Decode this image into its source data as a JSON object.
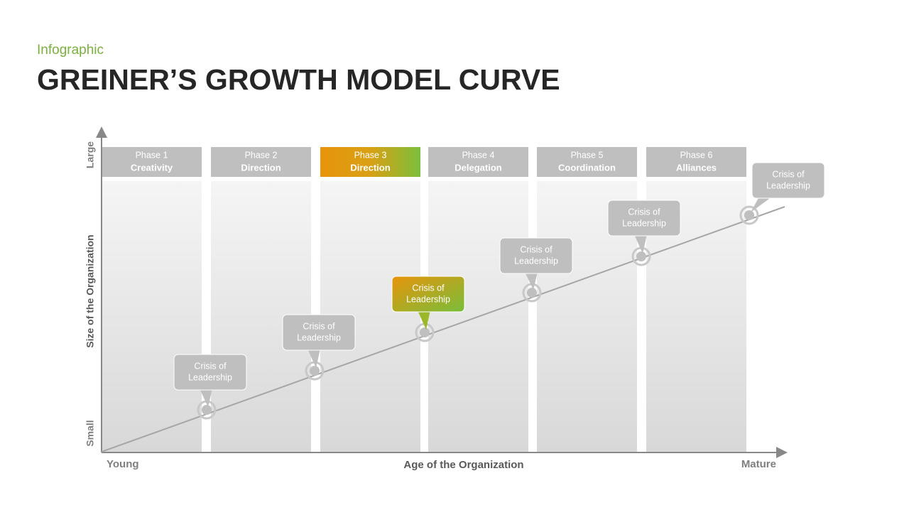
{
  "header": {
    "subtitle": "Infographic",
    "title": "GREINER’S GROWTH MODEL CURVE"
  },
  "axes": {
    "y_top": "Large",
    "y_bottom": "Small",
    "y_title": "Size of the Organization",
    "x_left": "Young",
    "x_right": "Mature",
    "x_title": "Age of the Organization"
  },
  "phases": [
    {
      "label": "Phase 1",
      "name": "Creativity"
    },
    {
      "label": "Phase 2",
      "name": "Direction"
    },
    {
      "label": "Phase 3",
      "name": "Direction"
    },
    {
      "label": "Phase 4",
      "name": "Delegation"
    },
    {
      "label": "Phase 5",
      "name": "Coordination"
    },
    {
      "label": "Phase 6",
      "name": "Alliances"
    }
  ],
  "callouts": [
    [
      "Crisis of",
      "Leadership"
    ],
    [
      "Crisis of",
      "Leadership"
    ],
    [
      "Crisis of",
      "Leadership"
    ],
    [
      "Crisis of",
      "Leadership"
    ],
    [
      "Crisis of",
      "Leadership"
    ],
    [
      "Crisis of",
      "Leadership"
    ]
  ]
}
